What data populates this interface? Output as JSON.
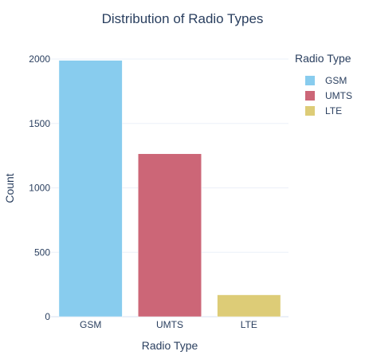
{
  "chart_data": {
    "type": "bar",
    "title": "Distribution of Radio Types",
    "xlabel": "Radio Type",
    "ylabel": "Count",
    "categories": [
      "GSM",
      "UMTS",
      "LTE"
    ],
    "values": [
      1990,
      1265,
      170
    ],
    "colors": [
      "#88ccee",
      "#cc6677",
      "#ddcc77"
    ],
    "ylim": [
      0,
      2000
    ],
    "yticks": [
      0,
      500,
      1000,
      1500,
      2000
    ],
    "grid": true,
    "legend": {
      "title": "Radio Type",
      "position": "top-right",
      "entries": [
        "GSM",
        "UMTS",
        "LTE"
      ]
    }
  }
}
